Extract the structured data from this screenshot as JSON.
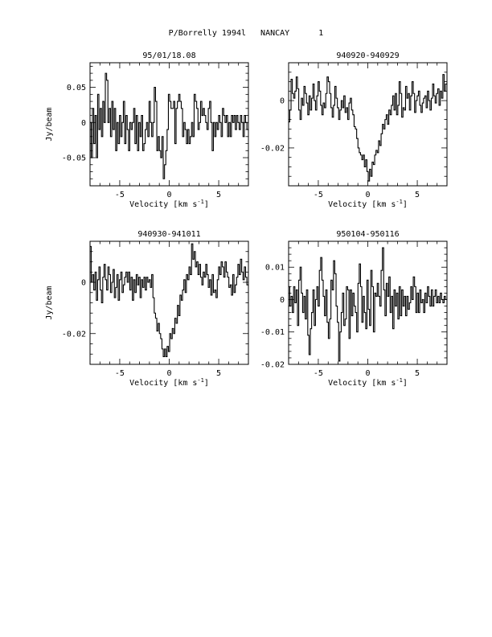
{
  "page": {
    "title": "P/Borrelly 1994l   NANCAY      1"
  },
  "chart_data": [
    {
      "type": "line",
      "step": true,
      "title": "95/01/18.08",
      "xlabel": "Velocity [km s",
      "xlabel_sup": "-1",
      "xlabel_end": "]",
      "ylabel": "Jy/beam",
      "xlim": [
        -8,
        8
      ],
      "ylim": [
        -0.09,
        0.085
      ],
      "xticks": [
        -5,
        0,
        5
      ],
      "xtick_labels": [
        "-5",
        "0",
        "5"
      ],
      "yticks": [
        -0.05,
        0,
        0.05
      ],
      "ytick_labels": [
        "-0.05",
        "0",
        "0.05"
      ],
      "x0": -7.95,
      "dx": 0.13,
      "values": [
        0.0,
        -0.05,
        0.02,
        -0.03,
        0.01,
        -0.05,
        0.04,
        -0.01,
        0.02,
        -0.02,
        0.03,
        0.0,
        0.07,
        0.06,
        0.0,
        0.02,
        -0.02,
        0.03,
        -0.01,
        0.02,
        -0.04,
        0.0,
        -0.03,
        0.01,
        -0.02,
        0.0,
        0.03,
        -0.03,
        0.01,
        -0.01,
        -0.04,
        0.0,
        -0.01,
        0.0,
        0.02,
        -0.03,
        0.01,
        -0.04,
        0.0,
        -0.02,
        0.01,
        -0.04,
        -0.03,
        -0.01,
        0.0,
        -0.02,
        0.03,
        0.0,
        -0.02,
        0.0,
        0.05,
        0.03,
        -0.04,
        -0.02,
        -0.04,
        -0.05,
        -0.02,
        -0.08,
        -0.06,
        -0.04,
        -0.01,
        0.04,
        0.03,
        0.02,
        0.02,
        0.03,
        -0.03,
        0.02,
        0.03,
        0.04,
        0.03,
        0.02,
        -0.02,
        0.0,
        -0.01,
        -0.03,
        -0.01,
        -0.03,
        -0.02,
        0.0,
        -0.02,
        0.04,
        0.03,
        0.02,
        -0.01,
        0.0,
        0.03,
        0.01,
        0.02,
        0.01,
        0.0,
        -0.01,
        0.02,
        0.03,
        0.0,
        -0.04,
        0.0,
        -0.02,
        0.0,
        -0.01,
        0.01,
        0.0,
        -0.02,
        0.02,
        0.01,
        0.0,
        0.01,
        -0.02,
        0.0,
        -0.02,
        0.01,
        0.0,
        0.01,
        -0.01,
        0.01,
        0.0,
        -0.01,
        0.01,
        0.0,
        -0.02,
        0.01,
        0.0,
        -0.01
      ]
    },
    {
      "type": "line",
      "step": true,
      "title": "940920-940929",
      "xlabel": "Velocity [km s",
      "xlabel_sup": "-1",
      "xlabel_end": "]",
      "ylabel": "",
      "xlim": [
        -8,
        8
      ],
      "ylim": [
        -0.036,
        0.016
      ],
      "xticks": [
        -5,
        0,
        5
      ],
      "xtick_labels": [
        "-5",
        "0",
        "5"
      ],
      "yticks": [
        -0.02,
        0
      ],
      "ytick_labels": [
        "-0.02",
        "0"
      ],
      "x0": -7.95,
      "dx": 0.13,
      "values": [
        -0.009,
        -0.004,
        0.009,
        0.003,
        0.001,
        0.004,
        0.01,
        0.005,
        -0.004,
        -0.008,
        0.001,
        -0.002,
        0.006,
        0.003,
        -0.001,
        -0.006,
        0.002,
        -0.004,
        0.001,
        0.007,
        0.0,
        -0.004,
        0.002,
        0.008,
        0.004,
        -0.002,
        -0.006,
        -0.001,
        -0.003,
        0.003,
        0.01,
        0.008,
        0.003,
        -0.003,
        -0.007,
        -0.002,
        0.006,
        0.001,
        -0.003,
        -0.008,
        -0.004,
        0.0,
        -0.003,
        0.002,
        -0.005,
        -0.003,
        -0.008,
        -0.001,
        0.001,
        -0.004,
        -0.006,
        -0.011,
        -0.012,
        -0.016,
        -0.02,
        -0.022,
        -0.023,
        -0.025,
        -0.023,
        -0.028,
        -0.025,
        -0.03,
        -0.034,
        -0.029,
        -0.032,
        -0.026,
        -0.027,
        -0.023,
        -0.021,
        -0.022,
        -0.017,
        -0.019,
        -0.014,
        -0.01,
        -0.012,
        -0.008,
        -0.006,
        -0.01,
        -0.004,
        -0.006,
        -0.002,
        0.002,
        -0.004,
        0.003,
        -0.006,
        -0.002,
        0.008,
        0.003,
        -0.007,
        -0.003,
        -0.004,
        0.006,
        0.001,
        0.003,
        -0.004,
        0.002,
        0.008,
        0.003,
        -0.005,
        0.0,
        0.002,
        0.004,
        -0.002,
        -0.005,
        -0.001,
        0.001,
        0.002,
        -0.003,
        0.004,
        0.0,
        -0.004,
        0.001,
        0.007,
        0.002,
        -0.001,
        0.003,
        0.005,
        -0.002,
        0.004,
        0.001,
        0.011,
        0.004,
        0.007
      ]
    },
    {
      "type": "line",
      "step": true,
      "title": "940930-941011",
      "xlabel": "Velocity [km s",
      "xlabel_sup": "-1",
      "xlabel_end": "]",
      "ylabel": "Jy/beam",
      "xlim": [
        -8,
        8
      ],
      "ylim": [
        -0.032,
        0.016
      ],
      "xticks": [
        -5,
        0,
        5
      ],
      "xtick_labels": [
        "-5",
        "0",
        "5"
      ],
      "yticks": [
        -0.02,
        0
      ],
      "ytick_labels": [
        "-0.02",
        "0"
      ],
      "x0": -7.95,
      "dx": 0.13,
      "values": [
        0.014,
        0.0,
        0.003,
        -0.003,
        0.004,
        -0.007,
        0.001,
        0.006,
        -0.003,
        -0.008,
        0.002,
        0.007,
        0.001,
        -0.003,
        0.006,
        0.003,
        -0.004,
        0.0,
        0.005,
        -0.006,
        -0.002,
        0.003,
        -0.007,
        0.001,
        0.004,
        -0.004,
        -0.001,
        0.002,
        0.004,
        0.0,
        0.004,
        -0.003,
        0.002,
        -0.007,
        0.001,
        -0.004,
        0.003,
        -0.001,
        0.002,
        -0.006,
        0.001,
        -0.002,
        0.002,
        -0.003,
        0.002,
        0.0,
        0.001,
        -0.002,
        0.003,
        -0.006,
        -0.012,
        -0.014,
        -0.019,
        -0.016,
        -0.02,
        -0.022,
        -0.026,
        -0.029,
        -0.026,
        -0.029,
        -0.025,
        -0.027,
        -0.02,
        -0.022,
        -0.018,
        -0.02,
        -0.014,
        -0.016,
        -0.009,
        -0.013,
        -0.005,
        -0.007,
        -0.003,
        0.001,
        -0.004,
        0.003,
        0.001,
        0.006,
        0.003,
        0.015,
        0.009,
        0.012,
        0.006,
        0.008,
        0.003,
        0.007,
        0.002,
        -0.001,
        0.004,
        0.002,
        0.007,
        0.003,
        -0.002,
        0.001,
        -0.005,
        0.003,
        -0.004,
        -0.003,
        -0.006,
        0.001,
        0.006,
        0.003,
        0.008,
        0.006,
        0.002,
        0.008,
        0.004,
        0.002,
        -0.002,
        -0.001,
        -0.005,
        0.003,
        -0.004,
        -0.001,
        0.002,
        0.007,
        0.003,
        0.009,
        0.004,
        0.001,
        0.006,
        0.002,
        -0.001
      ]
    },
    {
      "type": "line",
      "step": true,
      "title": "950104-950116",
      "xlabel": "Velocity [km s",
      "xlabel_sup": "-1",
      "xlabel_end": "]",
      "ylabel": "",
      "xlim": [
        -8,
        8
      ],
      "ylim": [
        -0.02,
        0.018
      ],
      "xticks": [
        -5,
        0,
        5
      ],
      "xtick_labels": [
        "-5",
        "0",
        "5"
      ],
      "yticks": [
        -0.02,
        -0.01,
        0,
        0.01
      ],
      "ytick_labels": [
        "-0.02",
        "-0.01",
        "0",
        "0.01"
      ],
      "x0": -7.95,
      "dx": 0.13,
      "values": [
        0.004,
        -0.002,
        0.001,
        -0.004,
        0.004,
        -0.001,
        0.003,
        -0.008,
        0.006,
        0.01,
        0.002,
        -0.004,
        0.001,
        -0.006,
        0.003,
        -0.011,
        -0.017,
        -0.009,
        -0.004,
        0.003,
        -0.008,
        0.0,
        0.004,
        -0.002,
        0.009,
        0.013,
        0.006,
        0.001,
        -0.005,
        0.003,
        -0.007,
        -0.012,
        -0.006,
        0.006,
        0.003,
        0.012,
        0.008,
        -0.002,
        -0.007,
        -0.019,
        -0.01,
        -0.004,
        0.002,
        -0.008,
        -0.006,
        0.004,
        0.003,
        -0.012,
        0.003,
        -0.005,
        0.002,
        -0.002,
        -0.004,
        -0.01,
        0.005,
        0.011,
        0.004,
        -0.007,
        0.001,
        -0.004,
        -0.009,
        0.006,
        -0.003,
        -0.008,
        0.009,
        0.004,
        -0.01,
        0.002,
        0.001,
        0.005,
        0.001,
        -0.002,
        0.009,
        0.016,
        0.003,
        -0.005,
        0.005,
        0.001,
        0.007,
        -0.004,
        0.001,
        -0.009,
        0.003,
        -0.002,
        0.002,
        -0.006,
        0.004,
        -0.005,
        0.003,
        -0.002,
        0.001,
        -0.005,
        0.001,
        -0.003,
        -0.001,
        0.004,
        0.0,
        0.007,
        0.004,
        -0.004,
        0.002,
        -0.004,
        0.003,
        -0.001,
        0.0,
        -0.004,
        0.002,
        -0.001,
        0.004,
        0.001,
        -0.002,
        0.003,
        -0.002,
        0.001,
        0.003,
        -0.001,
        0.001,
        -0.001,
        0.002,
        0.0,
        -0.001,
        0.001,
        0.0
      ]
    }
  ]
}
